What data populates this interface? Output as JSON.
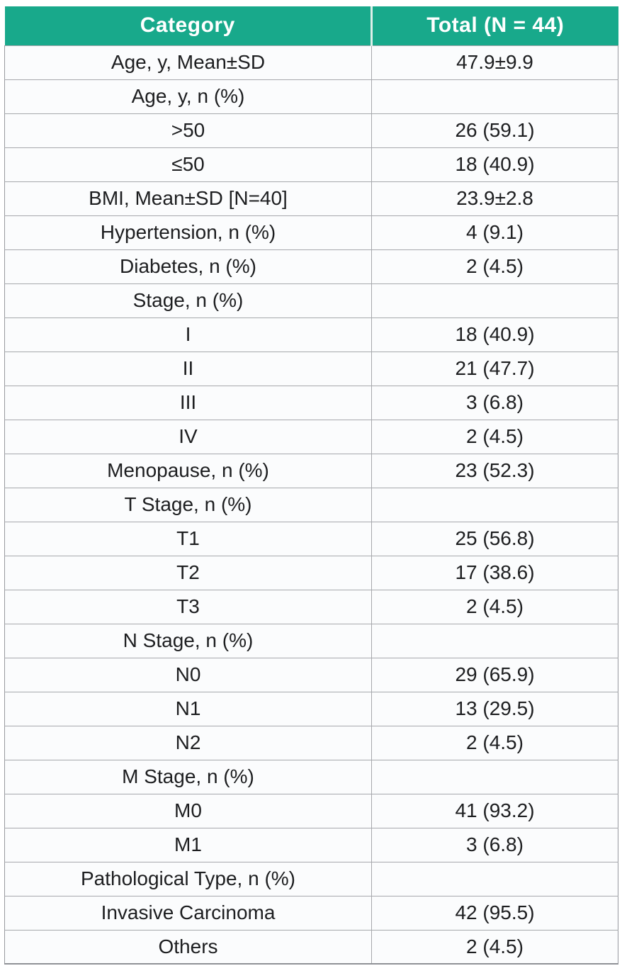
{
  "chart_data": {
    "type": "table",
    "columns": [
      "Category",
      "Total (N = 44)"
    ],
    "rows": [
      [
        "Age, y, Mean±SD",
        "47.9±9.9"
      ],
      [
        "Age, y, n (%)",
        ""
      ],
      [
        ">50",
        "26 (59.1)"
      ],
      [
        "≤50",
        "18 (40.9)"
      ],
      [
        "BMI, Mean±SD [N=40]",
        "23.9±2.8"
      ],
      [
        "Hypertension, n (%)",
        "4 (9.1)"
      ],
      [
        "Diabetes, n (%)",
        "2 (4.5)"
      ],
      [
        "Stage, n (%)",
        ""
      ],
      [
        "I",
        "18 (40.9)"
      ],
      [
        "II",
        "21 (47.7)"
      ],
      [
        "III",
        "3 (6.8)"
      ],
      [
        "IV",
        "2 (4.5)"
      ],
      [
        "Menopause, n (%)",
        "23 (52.3)"
      ],
      [
        "T Stage, n (%)",
        ""
      ],
      [
        "T1",
        "25 (56.8)"
      ],
      [
        "T2",
        "17 (38.6)"
      ],
      [
        "T3",
        "2 (4.5)"
      ],
      [
        "N Stage, n (%)",
        ""
      ],
      [
        "N0",
        "29 (65.9)"
      ],
      [
        "N1",
        "13 (29.5)"
      ],
      [
        "N2",
        "2 (4.5)"
      ],
      [
        "M Stage, n (%)",
        ""
      ],
      [
        "M0",
        "41 (93.2)"
      ],
      [
        "M1",
        "3 (6.8)"
      ],
      [
        "Pathological Type, n (%)",
        ""
      ],
      [
        "Invasive Carcinoma",
        "42 (95.5)"
      ],
      [
        "Others",
        "2 (4.5)"
      ]
    ]
  },
  "colors": {
    "header_bg": "#18a98b",
    "header_text": "#ffffff",
    "body_bg": "#fbfcfd",
    "grid_line": "#a6a8ac",
    "body_text": "#1d1e20"
  }
}
